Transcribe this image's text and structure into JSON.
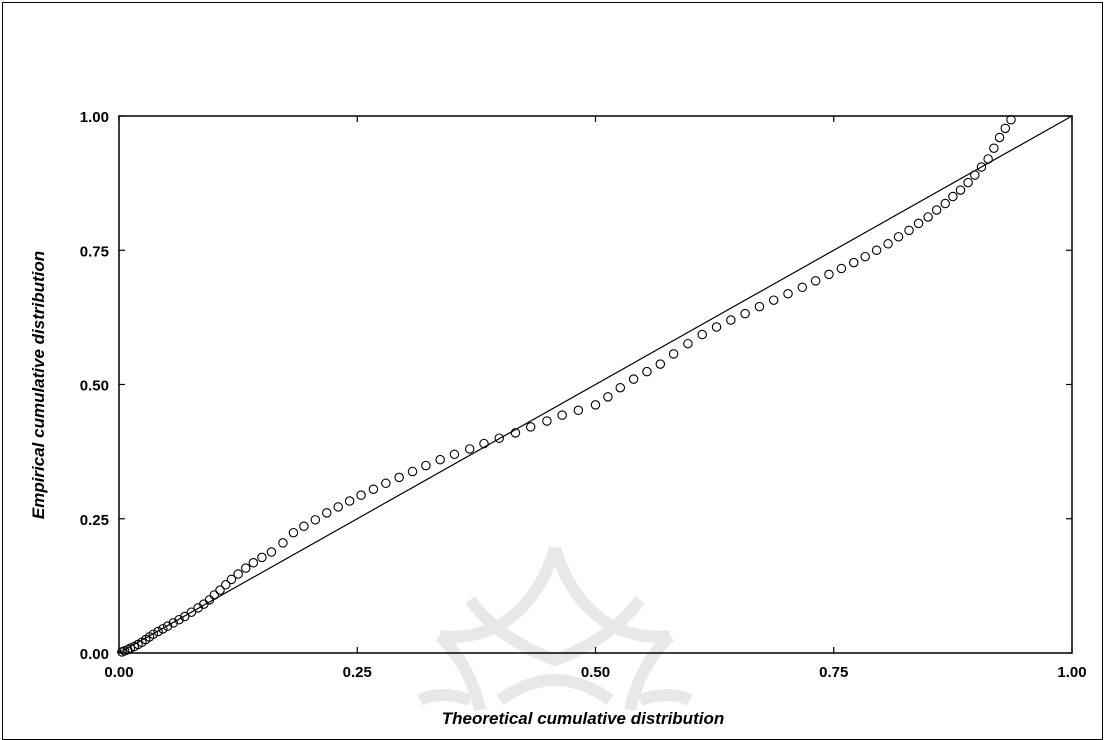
{
  "chart_data": {
    "type": "scatter",
    "title": "",
    "xlabel": "Theoretical cumulative distribution",
    "ylabel": "Empirical cumulative distribution",
    "xlim": [
      0,
      1
    ],
    "ylim": [
      0,
      1
    ],
    "x_ticks": [
      "0.00",
      "0.25",
      "0.50",
      "0.75",
      "1.00"
    ],
    "y_ticks": [
      "0.00",
      "0.25",
      "0.50",
      "0.75",
      "1.00"
    ],
    "grid": false,
    "legend": "none",
    "reference_line": {
      "from": [
        0,
        0
      ],
      "to": [
        1,
        1
      ]
    },
    "marker": "open-circle",
    "colors": {
      "points": "#000000",
      "line": "#000000",
      "watermark": "#e6e6e6"
    },
    "points": [
      [
        0.003,
        0.002
      ],
      [
        0.006,
        0.004
      ],
      [
        0.009,
        0.006
      ],
      [
        0.012,
        0.009
      ],
      [
        0.016,
        0.012
      ],
      [
        0.02,
        0.016
      ],
      [
        0.024,
        0.02
      ],
      [
        0.028,
        0.025
      ],
      [
        0.032,
        0.03
      ],
      [
        0.036,
        0.035
      ],
      [
        0.041,
        0.04
      ],
      [
        0.046,
        0.045
      ],
      [
        0.051,
        0.05
      ],
      [
        0.057,
        0.056
      ],
      [
        0.063,
        0.062
      ],
      [
        0.069,
        0.068
      ],
      [
        0.076,
        0.076
      ],
      [
        0.083,
        0.084
      ],
      [
        0.089,
        0.091
      ],
      [
        0.095,
        0.099
      ],
      [
        0.1,
        0.108
      ],
      [
        0.106,
        0.117
      ],
      [
        0.112,
        0.127
      ],
      [
        0.118,
        0.137
      ],
      [
        0.125,
        0.147
      ],
      [
        0.133,
        0.158
      ],
      [
        0.141,
        0.168
      ],
      [
        0.15,
        0.178
      ],
      [
        0.16,
        0.188
      ],
      [
        0.172,
        0.205
      ],
      [
        0.183,
        0.224
      ],
      [
        0.194,
        0.236
      ],
      [
        0.206,
        0.248
      ],
      [
        0.218,
        0.261
      ],
      [
        0.23,
        0.272
      ],
      [
        0.242,
        0.283
      ],
      [
        0.254,
        0.294
      ],
      [
        0.267,
        0.305
      ],
      [
        0.28,
        0.316
      ],
      [
        0.294,
        0.327
      ],
      [
        0.308,
        0.338
      ],
      [
        0.322,
        0.349
      ],
      [
        0.337,
        0.36
      ],
      [
        0.352,
        0.37
      ],
      [
        0.368,
        0.38
      ],
      [
        0.383,
        0.39
      ],
      [
        0.399,
        0.4
      ],
      [
        0.416,
        0.41
      ],
      [
        0.432,
        0.421
      ],
      [
        0.449,
        0.432
      ],
      [
        0.465,
        0.443
      ],
      [
        0.482,
        0.452
      ],
      [
        0.5,
        0.462
      ],
      [
        0.513,
        0.477
      ],
      [
        0.526,
        0.494
      ],
      [
        0.54,
        0.51
      ],
      [
        0.554,
        0.524
      ],
      [
        0.568,
        0.538
      ],
      [
        0.582,
        0.557
      ],
      [
        0.597,
        0.576
      ],
      [
        0.612,
        0.593
      ],
      [
        0.627,
        0.607
      ],
      [
        0.642,
        0.62
      ],
      [
        0.657,
        0.632
      ],
      [
        0.672,
        0.645
      ],
      [
        0.687,
        0.657
      ],
      [
        0.702,
        0.669
      ],
      [
        0.717,
        0.681
      ],
      [
        0.731,
        0.693
      ],
      [
        0.745,
        0.705
      ],
      [
        0.758,
        0.716
      ],
      [
        0.771,
        0.727
      ],
      [
        0.783,
        0.738
      ],
      [
        0.795,
        0.75
      ],
      [
        0.807,
        0.762
      ],
      [
        0.818,
        0.775
      ],
      [
        0.829,
        0.787
      ],
      [
        0.839,
        0.8
      ],
      [
        0.849,
        0.812
      ],
      [
        0.858,
        0.825
      ],
      [
        0.867,
        0.837
      ],
      [
        0.875,
        0.85
      ],
      [
        0.883,
        0.862
      ],
      [
        0.891,
        0.876
      ],
      [
        0.898,
        0.89
      ],
      [
        0.905,
        0.905
      ],
      [
        0.912,
        0.92
      ],
      [
        0.918,
        0.94
      ],
      [
        0.924,
        0.96
      ],
      [
        0.93,
        0.977
      ],
      [
        0.936,
        0.993
      ]
    ]
  }
}
